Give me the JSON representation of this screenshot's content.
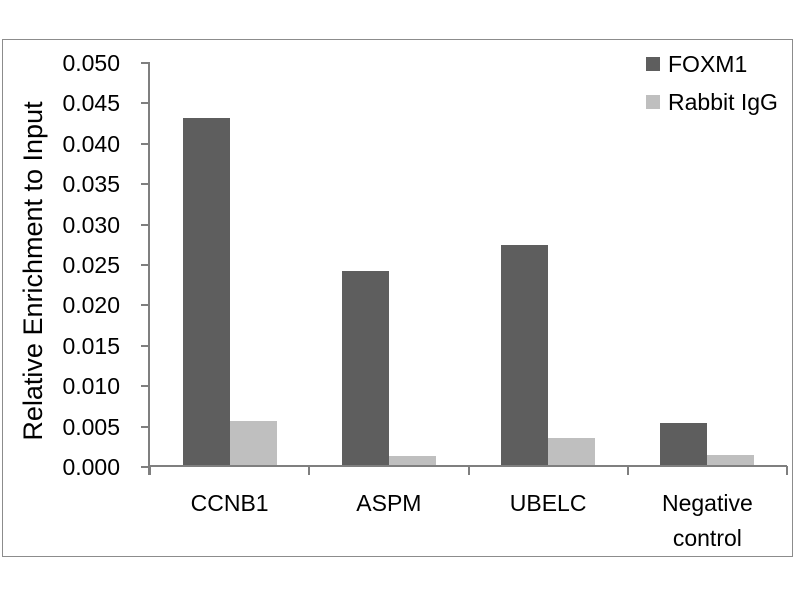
{
  "chart_data": {
    "type": "bar",
    "title": "",
    "ylabel": "Relative Enrichment to Input",
    "xlabel": "",
    "categories": [
      "CCNB1",
      "ASPM",
      "UBELC",
      "Negative control"
    ],
    "series": [
      {
        "name": "FOXM1",
        "color": "#5e5e5e",
        "values": [
          0.043,
          0.024,
          0.0272,
          0.0052
        ]
      },
      {
        "name": "Rabbit IgG",
        "color": "#bfbfbf",
        "values": [
          0.0055,
          0.0011,
          0.0034,
          0.0012
        ]
      }
    ],
    "ylim": [
      0,
      0.05
    ],
    "ytick_step": 0.005,
    "ytick_decimals": 3,
    "ytick_labels": [
      "0.000",
      "0.005",
      "0.010",
      "0.015",
      "0.020",
      "0.025",
      "0.030",
      "0.035",
      "0.040",
      "0.045",
      "0.050"
    ],
    "grid": false,
    "legend_position": "top-right"
  },
  "colors": {
    "axis": "#7f7f7f",
    "frame_border": "#8c8c8c",
    "text": "#000000",
    "background": "#ffffff"
  }
}
